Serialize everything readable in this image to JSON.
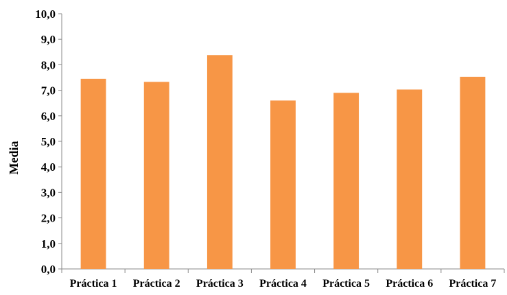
{
  "chart_data": {
    "type": "bar",
    "categories": [
      "Práctica 1",
      "Práctica 2",
      "Práctica 3",
      "Práctica 4",
      "Práctica 5",
      "Práctica 6",
      "Práctica 7"
    ],
    "values": [
      7.45,
      7.33,
      8.38,
      6.6,
      6.9,
      7.03,
      7.53
    ],
    "ylabel": "Media",
    "xlabel": "",
    "ylim": [
      0,
      10
    ],
    "yticks": [
      "0,0",
      "1,0",
      "2,0",
      "3,0",
      "4,0",
      "5,0",
      "6,0",
      "7,0",
      "8,0",
      "9,0",
      "10,0"
    ],
    "bar_color": "#F79646",
    "grid": false,
    "legend": "none"
  }
}
